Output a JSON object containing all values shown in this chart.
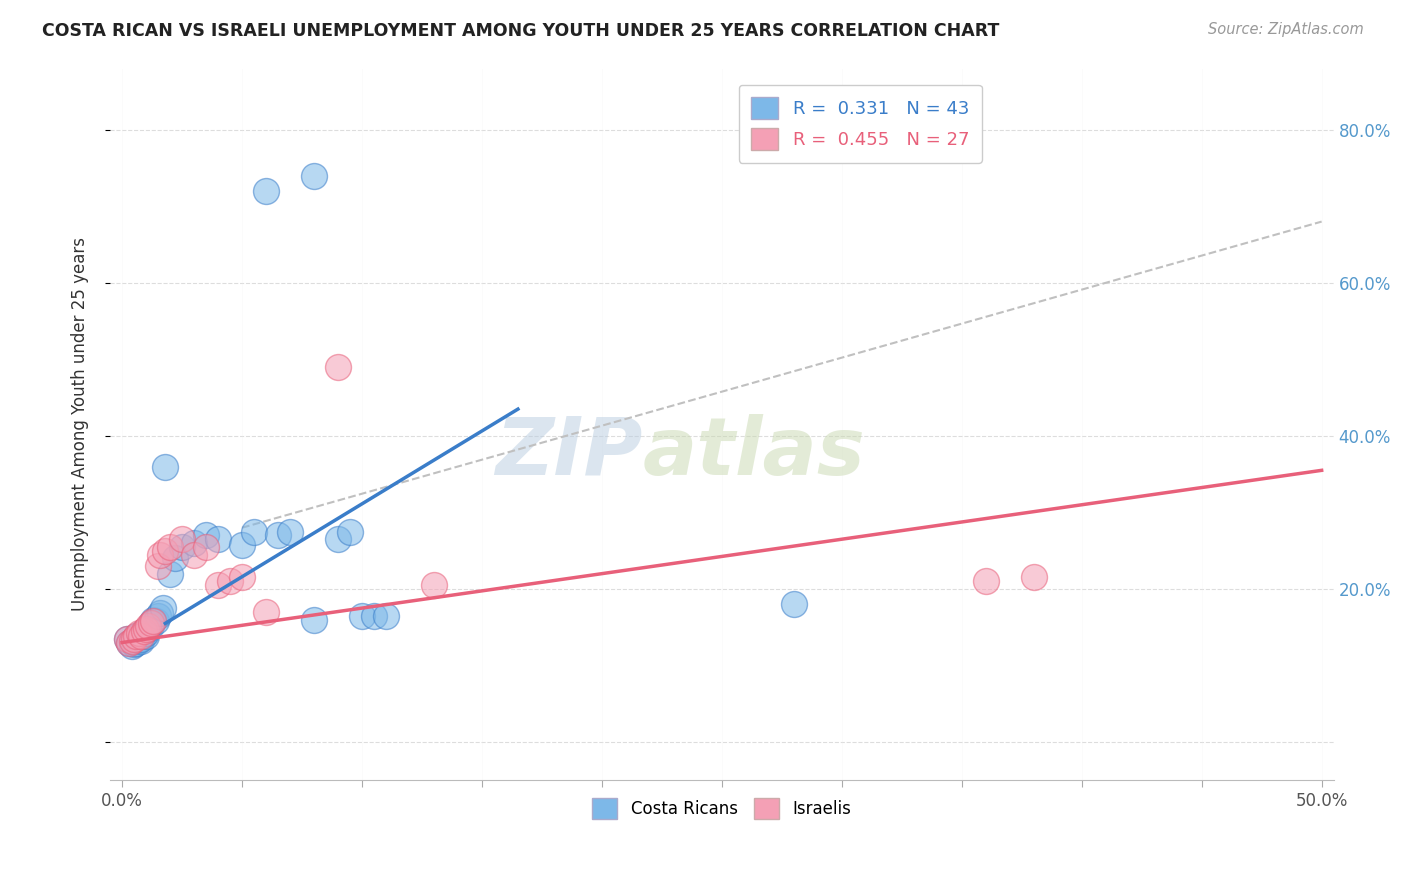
{
  "title": "COSTA RICAN VS ISRAELI UNEMPLOYMENT AMONG YOUTH UNDER 25 YEARS CORRELATION CHART",
  "source": "Source: ZipAtlas.com",
  "ylabel": "Unemployment Among Youth under 25 years",
  "xlim": [
    -0.005,
    0.505
  ],
  "ylim": [
    -0.05,
    0.88
  ],
  "xticks": [
    0.0,
    0.05,
    0.1,
    0.15,
    0.2,
    0.25,
    0.3,
    0.35,
    0.4,
    0.45,
    0.5
  ],
  "xtick_labels": [
    "0.0%",
    "",
    "",
    "",
    "",
    "",
    "",
    "",
    "",
    "",
    "50.0%"
  ],
  "yticks": [
    0.0,
    0.2,
    0.4,
    0.6,
    0.8
  ],
  "ytick_labels": [
    "",
    "20.0%",
    "40.0%",
    "60.0%",
    "80.0%"
  ],
  "legend_blue_R": "0.331",
  "legend_blue_N": "43",
  "legend_pink_R": "0.455",
  "legend_pink_N": "27",
  "blue_color": "#7DB8E8",
  "pink_color": "#F4A0B5",
  "blue_line_color": "#3A7DC9",
  "pink_line_color": "#E8607A",
  "dashed_line_color": "#C0C0C0",
  "watermark_zip": "ZIP",
  "watermark_atlas": "atlas",
  "blue_line_x": [
    0.018,
    0.165
  ],
  "blue_line_y": [
    0.155,
    0.435
  ],
  "pink_line_x": [
    0.0,
    0.5
  ],
  "pink_line_y": [
    0.13,
    0.355
  ],
  "dashed_line_x": [
    0.05,
    0.5
  ],
  "dashed_line_y": [
    0.28,
    0.68
  ],
  "costa_rica_x": [
    0.002,
    0.003,
    0.004,
    0.005,
    0.005,
    0.006,
    0.006,
    0.007,
    0.007,
    0.008,
    0.008,
    0.009,
    0.009,
    0.01,
    0.01,
    0.011,
    0.012,
    0.012,
    0.013,
    0.014,
    0.015,
    0.016,
    0.017,
    0.018,
    0.02,
    0.022,
    0.025,
    0.03,
    0.035,
    0.04,
    0.05,
    0.055,
    0.065,
    0.07,
    0.08,
    0.09,
    0.095,
    0.1,
    0.105,
    0.11,
    0.06,
    0.28,
    0.08
  ],
  "costa_rica_y": [
    0.135,
    0.13,
    0.125,
    0.128,
    0.132,
    0.13,
    0.138,
    0.133,
    0.14,
    0.132,
    0.135,
    0.14,
    0.145,
    0.138,
    0.142,
    0.148,
    0.152,
    0.155,
    0.16,
    0.158,
    0.165,
    0.168,
    0.175,
    0.36,
    0.22,
    0.24,
    0.255,
    0.26,
    0.27,
    0.265,
    0.258,
    0.275,
    0.27,
    0.275,
    0.16,
    0.265,
    0.275,
    0.165,
    0.165,
    0.165,
    0.72,
    0.18,
    0.74
  ],
  "israel_x": [
    0.002,
    0.003,
    0.004,
    0.005,
    0.006,
    0.007,
    0.008,
    0.009,
    0.01,
    0.011,
    0.012,
    0.013,
    0.015,
    0.016,
    0.018,
    0.02,
    0.025,
    0.03,
    0.035,
    0.04,
    0.045,
    0.05,
    0.06,
    0.09,
    0.13,
    0.36,
    0.38
  ],
  "israel_y": [
    0.135,
    0.13,
    0.132,
    0.135,
    0.138,
    0.142,
    0.138,
    0.145,
    0.148,
    0.152,
    0.155,
    0.158,
    0.23,
    0.245,
    0.25,
    0.255,
    0.265,
    0.245,
    0.255,
    0.205,
    0.21,
    0.215,
    0.17,
    0.49,
    0.205,
    0.21,
    0.215
  ]
}
